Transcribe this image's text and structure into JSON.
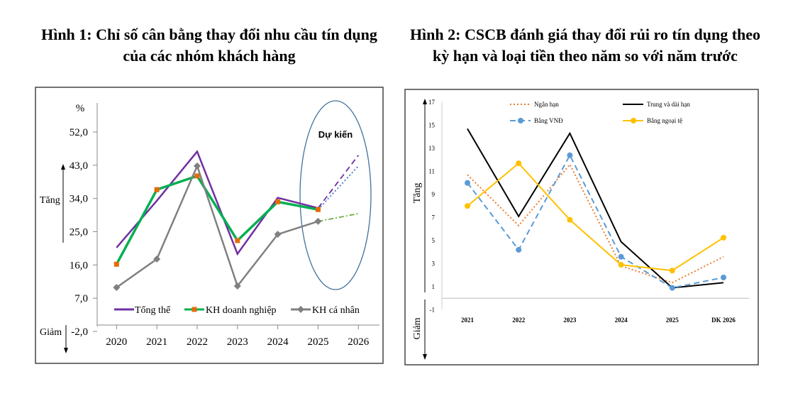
{
  "charts_titles": {
    "fig1": "Hình 1:  Chỉ số cân bằng thay đổi nhu cầu tín dụng của các nhóm khách hàng",
    "fig2": "Hình 2: CSCB đánh giá thay đổi rủi ro tín dụng theo kỳ hạn và loại tiền theo năm so với năm trước"
  },
  "chart_data": [
    {
      "type": "line",
      "title": "Hình 1:  Chỉ số cân bằng thay đổi nhu cầu tín dụng của các nhóm khách hàng",
      "ylabel": "%",
      "up_label": "Tăng",
      "down_label": "Giảm",
      "annotation": "Dự kiến",
      "categories": [
        "2020",
        "2021",
        "2022",
        "2023",
        "2024",
        "2025",
        "2026"
      ],
      "yticks": [
        "52,0",
        "43,0",
        "34,0",
        "25,0",
        "16,0",
        "7,0",
        "-2,0"
      ],
      "ytick_values": [
        52,
        43,
        34,
        25,
        16,
        7,
        -2
      ],
      "ylim": [
        -2,
        52
      ],
      "grid": false,
      "legend_position": "bottom-inside",
      "series": [
        {
          "name": "Tổng thể",
          "color": "#7030a0",
          "marker": "none",
          "values": [
            20.7,
            33.4,
            46.7,
            19.0,
            34.2,
            31.4,
            45.7
          ],
          "forecast_style": "dashed"
        },
        {
          "name": "KH doanh nghiệp",
          "color": "#00b050",
          "marker": "square",
          "marker_color": "#e36c0a",
          "values": [
            16.2,
            36.4,
            40.1,
            22.6,
            33.1,
            31.0,
            42.8
          ],
          "forecast_style": "dotted",
          "forecast_color": "#4472c4"
        },
        {
          "name": "KH cá nhân",
          "color": "#808080",
          "marker": "diamond",
          "values": [
            9.9,
            17.6,
            42.8,
            10.3,
            24.3,
            27.8,
            29.9
          ],
          "forecast_style": "dash-dot",
          "forecast_color": "#70ad47"
        }
      ]
    },
    {
      "type": "line",
      "title": "Hình 2: CSCB đánh giá thay đổi rủi ro tín dụng theo kỳ hạn và loại tiền theo năm so với năm trước",
      "up_label": "Tăng",
      "down_label": "Giảm",
      "categories": [
        "2021",
        "2022",
        "2023",
        "2024",
        "2025",
        "DK 2026"
      ],
      "yticks": [
        "17",
        "15",
        "13",
        "11",
        "9",
        "7",
        "5",
        "3",
        "1",
        "-1"
      ],
      "ytick_values": [
        17,
        15,
        13,
        11,
        9,
        7,
        5,
        3,
        1,
        -1
      ],
      "ylim": [
        -1,
        17
      ],
      "grid": false,
      "legend_position": "top",
      "series": [
        {
          "name": "Ngắn hạn",
          "color": "#ed7d31",
          "style": "dotted",
          "marker": "none",
          "values": [
            10.7,
            6.3,
            11.6,
            2.8,
            1.35,
            3.6
          ]
        },
        {
          "name": "Trung và dài hạn",
          "color": "#000000",
          "style": "solid",
          "marker": "none",
          "values": [
            14.7,
            7.1,
            14.3,
            4.9,
            0.9,
            1.35
          ]
        },
        {
          "name": "Bằng VNĐ",
          "color": "#5b9bd5",
          "style": "dashed",
          "marker": "circle",
          "values": [
            10.0,
            4.2,
            12.4,
            3.6,
            0.9,
            1.8
          ]
        },
        {
          "name": "Bằng ngoại tệ",
          "color": "#ffc000",
          "style": "solid",
          "marker": "circle",
          "values": [
            8.0,
            11.7,
            6.8,
            2.9,
            2.4,
            5.25
          ]
        }
      ]
    }
  ]
}
